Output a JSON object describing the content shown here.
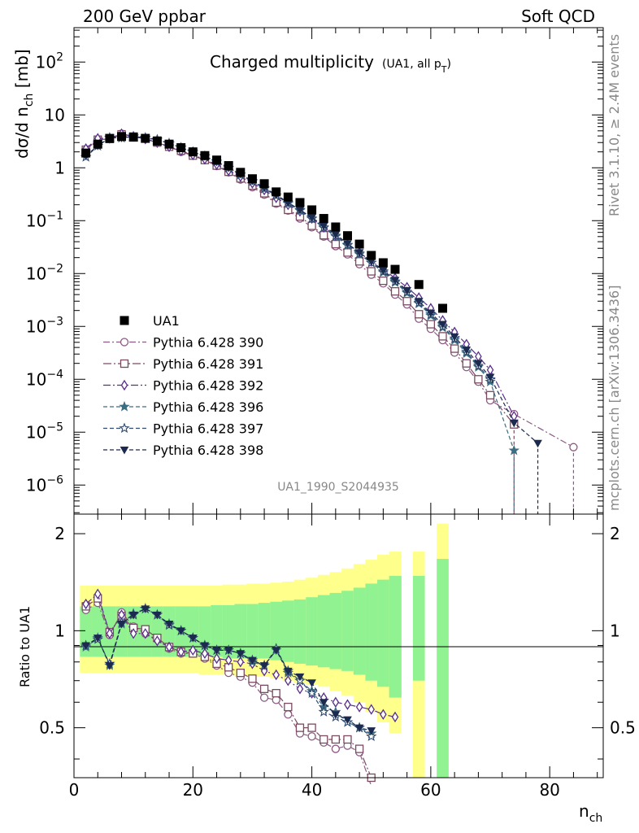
{
  "header": {
    "energy_label": "200 GeV ppbar",
    "process_label": "Soft QCD",
    "plot_title": "Charged multiplicity",
    "plot_title_sub": "(UA1, all p",
    "plot_title_sub_idx": "T",
    "plot_title_sub_end": ")",
    "analysis_id": "UA1_1990_S2044935",
    "right_text_top": "Rivet 3.1.10, ≥ 2.4M events",
    "right_text_bottom": "mcplots.cern.ch [arXiv:1306.3436]"
  },
  "axes": {
    "y_main_label": "dσ/d n",
    "y_main_label_sub": "ch",
    "y_main_label_unit": " [mb]",
    "y_ratio_label": "Ratio to UA1",
    "x_label": "n",
    "x_label_sub": "ch",
    "x_ticks": [
      "0",
      "20",
      "40",
      "60",
      "80"
    ],
    "ratio_ticks": [
      "0.5",
      "1",
      "2"
    ],
    "main_ticks": [
      "10^-6",
      "10^-5",
      "10^-4",
      "10^-3",
      "10^-2",
      "10^-1",
      "1",
      "10",
      "10^2"
    ]
  },
  "chart_data": {
    "type": "scatter",
    "xlabel": "n_ch",
    "ylabel": "dσ/d n_ch [mb]",
    "xlim": [
      0,
      89
    ],
    "ylim_log10": [
      -6.55,
      2.65
    ],
    "ratio_ylim": [
      0.35,
      2.3
    ],
    "y_scale": "log",
    "legend_position": "left-middle",
    "data": {
      "name": "UA1",
      "color": "#000000",
      "marker": "square",
      "x": [
        2,
        4,
        6,
        8,
        10,
        12,
        14,
        16,
        18,
        20,
        22,
        24,
        26,
        28,
        30,
        32,
        34,
        36,
        38,
        40,
        42,
        44,
        46,
        48,
        50,
        52,
        54,
        58,
        62
      ],
      "y": [
        1.9,
        2.8,
        3.6,
        3.9,
        3.8,
        3.6,
        3.2,
        2.8,
        2.4,
        2.0,
        1.7,
        1.4,
        1.1,
        0.82,
        0.62,
        0.5,
        0.35,
        0.28,
        0.22,
        0.16,
        0.11,
        0.076,
        0.052,
        0.036,
        0.022,
        0.016,
        0.012,
        0.0062,
        0.0022
      ]
    },
    "ratio_bands": {
      "x_edges": [
        1,
        3,
        5,
        7,
        9,
        11,
        13,
        15,
        17,
        19,
        21,
        23,
        25,
        27,
        29,
        31,
        33,
        35,
        37,
        39,
        41,
        43,
        45,
        47,
        49,
        51,
        53,
        55
      ],
      "yellow_low": [
        0.74,
        0.74,
        0.74,
        0.74,
        0.74,
        0.74,
        0.74,
        0.74,
        0.74,
        0.74,
        0.73,
        0.73,
        0.73,
        0.72,
        0.72,
        0.72,
        0.71,
        0.7,
        0.69,
        0.68,
        0.67,
        0.65,
        0.63,
        0.6,
        0.56,
        0.52,
        0.48
      ],
      "yellow_high": [
        1.38,
        1.38,
        1.38,
        1.38,
        1.38,
        1.38,
        1.38,
        1.38,
        1.38,
        1.38,
        1.38,
        1.38,
        1.39,
        1.39,
        1.4,
        1.4,
        1.41,
        1.42,
        1.44,
        1.46,
        1.49,
        1.52,
        1.56,
        1.61,
        1.66,
        1.72,
        1.76
      ],
      "green_low": [
        0.83,
        0.83,
        0.83,
        0.83,
        0.83,
        0.83,
        0.83,
        0.83,
        0.83,
        0.83,
        0.83,
        0.83,
        0.82,
        0.82,
        0.82,
        0.82,
        0.81,
        0.8,
        0.79,
        0.78,
        0.77,
        0.76,
        0.75,
        0.73,
        0.7,
        0.67,
        0.62
      ],
      "green_high": [
        1.19,
        1.19,
        1.19,
        1.19,
        1.19,
        1.19,
        1.19,
        1.19,
        1.19,
        1.19,
        1.19,
        1.2,
        1.2,
        1.21,
        1.21,
        1.22,
        1.23,
        1.24,
        1.25,
        1.27,
        1.29,
        1.31,
        1.33,
        1.36,
        1.4,
        1.44,
        1.48
      ],
      "extra": [
        {
          "x0": 57,
          "x1": 59,
          "yellow": [
            0.35,
            1.76
          ],
          "green": [
            0.7,
            1.48
          ]
        },
        {
          "x0": 61,
          "x1": 63,
          "yellow": [
            0.35,
            2.15
          ],
          "green": [
            0.35,
            1.67
          ]
        }
      ]
    },
    "series": [
      {
        "name": "Pythia 6.428 390",
        "color": "#8B5A83",
        "marker": "open-circle",
        "dash": "8,3,2,3",
        "x": [
          2,
          4,
          6,
          8,
          10,
          12,
          14,
          16,
          18,
          20,
          22,
          24,
          26,
          28,
          30,
          32,
          34,
          36,
          38,
          40,
          42,
          44,
          46,
          48,
          50,
          52,
          54,
          56,
          58,
          60,
          62,
          64,
          66,
          68,
          70,
          74,
          84
        ],
        "y": [
          2.2,
          3.4,
          3.5,
          4.4,
          3.9,
          3.5,
          3.0,
          2.5,
          2.0,
          1.7,
          1.4,
          1.08,
          0.82,
          0.6,
          0.43,
          0.31,
          0.21,
          0.155,
          0.11,
          0.075,
          0.05,
          0.033,
          0.023,
          0.015,
          0.0095,
          0.0065,
          0.004,
          0.0026,
          0.0014,
          0.0009,
          0.00055,
          0.00032,
          0.00017,
          9e-05,
          4e-05,
          2.2e-05,
          5.2e-06
        ],
        "ratio": [
          1.16,
          1.22,
          0.97,
          1.14,
          1.03,
          0.98,
          0.94,
          0.88,
          0.85,
          0.85,
          0.82,
          0.78,
          0.74,
          0.72,
          0.69,
          0.62,
          0.61,
          0.55,
          0.48,
          0.47,
          0.45,
          0.43,
          0.44,
          0.42,
          0.33
        ]
      },
      {
        "name": "Pythia 6.428 391",
        "color": "#7A4A60",
        "marker": "open-square",
        "dash": "10,3,2,3",
        "x": [
          2,
          4,
          6,
          8,
          10,
          12,
          14,
          16,
          18,
          20,
          22,
          24,
          26,
          28,
          30,
          32,
          34,
          36,
          38,
          40,
          42,
          44,
          46,
          48,
          50,
          52,
          54,
          56,
          58,
          60,
          62,
          64,
          66,
          68,
          70,
          74
        ],
        "y": [
          2.2,
          3.4,
          3.5,
          4.3,
          3.9,
          3.6,
          3.0,
          2.5,
          2.1,
          1.7,
          1.4,
          1.1,
          0.84,
          0.63,
          0.46,
          0.33,
          0.22,
          0.16,
          0.12,
          0.08,
          0.053,
          0.036,
          0.025,
          0.017,
          0.011,
          0.0073,
          0.0046,
          0.003,
          0.0017,
          0.0011,
          0.00065,
          0.00038,
          0.0002,
          0.0001,
          5e-05,
          1.4e-05
        ],
        "ratio": [
          1.19,
          1.26,
          0.99,
          1.11,
          1.02,
          1.01,
          0.95,
          0.89,
          0.86,
          0.85,
          0.83,
          0.79,
          0.77,
          0.74,
          0.71,
          0.66,
          0.64,
          0.58,
          0.5,
          0.5,
          0.46,
          0.46,
          0.46,
          0.43,
          0.35
        ]
      },
      {
        "name": "Pythia 6.428 392",
        "color": "#5A2E8C",
        "marker": "open-diamond",
        "dash": "9,3,2,3",
        "x": [
          2,
          4,
          6,
          8,
          10,
          12,
          14,
          16,
          18,
          20,
          22,
          24,
          26,
          28,
          30,
          32,
          34,
          36,
          38,
          40,
          42,
          44,
          46,
          48,
          50,
          52,
          54,
          56,
          58,
          60,
          62,
          64,
          66,
          68,
          70,
          74
        ],
        "y": [
          2.3,
          3.6,
          3.6,
          4.4,
          3.9,
          3.5,
          3.0,
          2.5,
          2.1,
          1.75,
          1.45,
          1.15,
          0.88,
          0.68,
          0.51,
          0.38,
          0.27,
          0.2,
          0.15,
          0.11,
          0.075,
          0.052,
          0.036,
          0.025,
          0.017,
          0.012,
          0.0082,
          0.0055,
          0.0035,
          0.0022,
          0.0013,
          0.00078,
          0.00046,
          0.00027,
          0.00015,
          2e-05
        ],
        "ratio": [
          1.21,
          1.3,
          0.98,
          1.12,
          0.98,
          0.98,
          0.93,
          0.89,
          0.86,
          0.87,
          0.85,
          0.82,
          0.81,
          0.8,
          0.79,
          0.75,
          0.73,
          0.7,
          0.66,
          0.64,
          0.62,
          0.6,
          0.59,
          0.58,
          0.57,
          0.55,
          0.54
        ]
      },
      {
        "name": "Pythia 6.428 396",
        "color": "#3C6E82",
        "marker": "filled-star",
        "dash": "5,3",
        "x": [
          2,
          4,
          6,
          8,
          10,
          12,
          14,
          16,
          18,
          20,
          22,
          24,
          26,
          28,
          30,
          32,
          34,
          36,
          38,
          40,
          42,
          44,
          46,
          48,
          50,
          52,
          54,
          56,
          58,
          60,
          62,
          64,
          66,
          68,
          70,
          74
        ],
        "y": [
          1.6,
          2.6,
          3.7,
          3.7,
          3.9,
          3.7,
          3.4,
          2.9,
          2.4,
          2.0,
          1.65,
          1.3,
          1.0,
          0.74,
          0.55,
          0.4,
          0.3,
          0.21,
          0.155,
          0.108,
          0.073,
          0.05,
          0.034,
          0.023,
          0.016,
          0.0105,
          0.0068,
          0.0043,
          0.0027,
          0.0016,
          0.00095,
          0.00055,
          0.00031,
          0.00017,
          9e-05,
          4.5e-06
        ],
        "ratio": [
          0.89,
          0.95,
          0.78,
          1.05,
          1.13,
          1.17,
          1.12,
          1.05,
          1.0,
          0.95,
          0.9,
          0.87,
          0.87,
          0.85,
          0.8,
          0.78,
          0.87,
          0.74,
          0.7,
          0.65,
          0.58,
          0.56,
          0.52,
          0.5,
          0.48
        ]
      },
      {
        "name": "Pythia 6.428 397",
        "color": "#2F4A6E",
        "marker": "open-star",
        "dash": "5,3",
        "x": [
          2,
          4,
          6,
          8,
          10,
          12,
          14,
          16,
          18,
          20,
          22,
          24,
          26,
          28,
          30,
          32,
          34,
          36,
          38,
          40,
          42,
          44,
          46,
          48,
          50,
          52,
          54,
          56,
          58,
          60,
          62,
          64,
          66,
          68,
          70
        ],
        "y": [
          1.6,
          2.6,
          3.7,
          3.7,
          3.9,
          3.7,
          3.4,
          2.9,
          2.4,
          2.0,
          1.65,
          1.3,
          1.0,
          0.75,
          0.56,
          0.41,
          0.3,
          0.22,
          0.16,
          0.11,
          0.075,
          0.052,
          0.035,
          0.024,
          0.016,
          0.011,
          0.0071,
          0.0045,
          0.0028,
          0.0017,
          0.001,
          0.00059,
          0.00033,
          0.00018,
          0.0001
        ],
        "ratio": [
          0.9,
          0.94,
          0.79,
          1.06,
          1.12,
          1.17,
          1.12,
          1.04,
          1.0,
          0.95,
          0.9,
          0.87,
          0.87,
          0.85,
          0.81,
          0.78,
          0.88,
          0.75,
          0.7,
          0.64,
          0.56,
          0.54,
          0.52,
          0.5,
          0.47
        ]
      },
      {
        "name": "Pythia 6.428 398",
        "color": "#1B2A4E",
        "marker": "filled-triangle-down",
        "dash": "5,3",
        "x": [
          2,
          4,
          6,
          8,
          10,
          12,
          14,
          16,
          18,
          20,
          22,
          24,
          26,
          28,
          30,
          32,
          34,
          36,
          38,
          40,
          42,
          44,
          46,
          48,
          50,
          52,
          54,
          56,
          58,
          60,
          62,
          64,
          66,
          68,
          70,
          74,
          78
        ],
        "y": [
          1.7,
          2.6,
          3.7,
          3.7,
          3.9,
          3.7,
          3.4,
          2.9,
          2.4,
          2.0,
          1.65,
          1.3,
          1.0,
          0.76,
          0.57,
          0.42,
          0.31,
          0.22,
          0.16,
          0.115,
          0.08,
          0.055,
          0.037,
          0.025,
          0.017,
          0.0115,
          0.0075,
          0.0048,
          0.003,
          0.0018,
          0.0011,
          0.00064,
          0.00036,
          0.0002,
          0.00011,
          1.5e-05,
          6.2e-06
        ],
        "ratio": [
          0.9,
          0.95,
          0.78,
          1.05,
          1.12,
          1.17,
          1.12,
          1.05,
          1.0,
          0.95,
          0.9,
          0.87,
          0.87,
          0.85,
          0.81,
          0.78,
          0.87,
          0.75,
          0.72,
          0.69,
          0.6,
          0.55,
          0.53,
          0.5,
          0.49
        ]
      }
    ]
  }
}
